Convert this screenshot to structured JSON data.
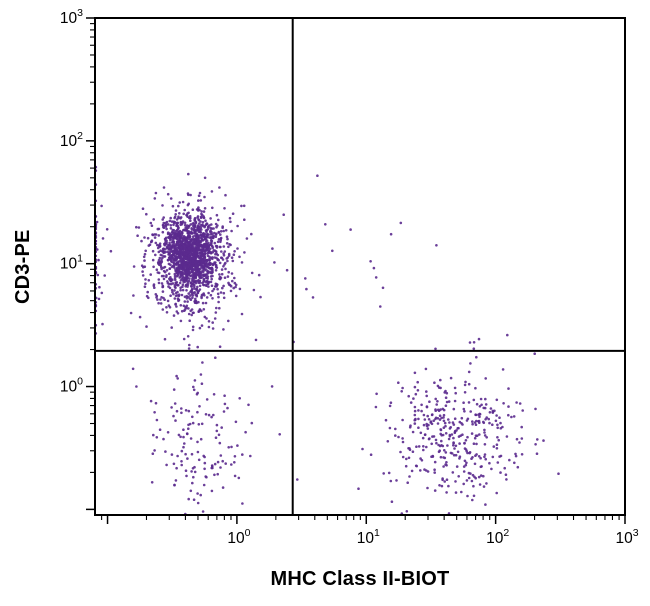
{
  "chart_data": {
    "type": "scatter",
    "title": "",
    "xlabel": "MHC Class II-BIOT",
    "ylabel": "CD3-PE",
    "x_scale": "log",
    "y_scale": "log",
    "xlim": [
      0.08,
      1000
    ],
    "ylim": [
      0.09,
      1000
    ],
    "x_tick_exponents": [
      0,
      1,
      2,
      3
    ],
    "y_tick_exponents": [
      0,
      1,
      2,
      3
    ],
    "grid": false,
    "legend": false,
    "point_color": "#5b2a8e",
    "point_radius": 1.3,
    "axis_color": "#000000",
    "seed": 1337,
    "quadrant_gates": {
      "x": 2.7,
      "y": 1.95
    },
    "clusters": [
      {
        "name": "cd3-pos-mhc2-neg-core",
        "n": 700,
        "cx_log10": -0.36,
        "cy_log10": 1.06,
        "sx": 0.085,
        "sy": 0.115
      },
      {
        "name": "cd3-pos-mhc2-neg-outer",
        "n": 1100,
        "cx_log10": -0.36,
        "cy_log10": 1.05,
        "sx": 0.165,
        "sy": 0.215
      },
      {
        "name": "axis-edge-pile",
        "n": 55,
        "cx_log10": -1.15,
        "cy_log10": 1.0,
        "sx": 0.08,
        "sy": 0.28
      },
      {
        "name": "double-negative",
        "n": 125,
        "cx_log10": -0.33,
        "cy_log10": -0.42,
        "sx": 0.19,
        "sy": 0.27
      },
      {
        "name": "mhc2-pos-cd3-neg",
        "n": 400,
        "cx_log10": 1.7,
        "cy_log10": -0.36,
        "sx": 0.27,
        "sy": 0.26
      },
      {
        "name": "double-positive-sparse",
        "n": 16,
        "cx_log10": 0.85,
        "cy_log10": 1.05,
        "sx": 0.33,
        "sy": 0.22
      },
      {
        "name": "scatter-noise",
        "n": 50,
        "cx_log10": -0.25,
        "cy_log10": 0.35,
        "sx": 0.33,
        "sy": 0.6
      }
    ]
  }
}
